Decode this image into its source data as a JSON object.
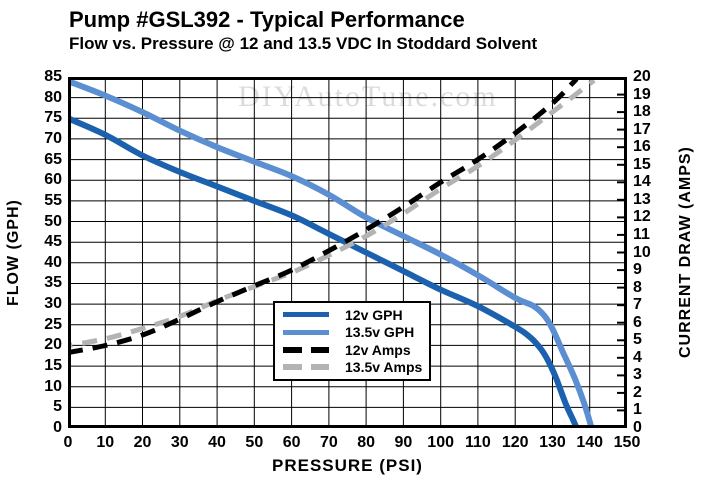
{
  "watermark": "DIYAutoTune.com",
  "chart_data": {
    "type": "line",
    "title": "Pump #GSL392 - Typical Performance",
    "subtitle": "Flow vs. Pressure @ 12 and 13.5 VDC In Stoddard Solvent",
    "xlabel": "PRESSURE (PSI)",
    "ylabel_left": "FLOW (GPH)",
    "ylabel_right": "CURRENT DRAW (AMPS)",
    "x_range": [
      0,
      150
    ],
    "y_left_range": [
      0,
      85
    ],
    "y_right_range": [
      0,
      20
    ],
    "x_ticks": [
      0,
      10,
      20,
      30,
      40,
      50,
      60,
      70,
      80,
      90,
      100,
      110,
      120,
      130,
      140,
      150
    ],
    "y_left_ticks": [
      0,
      5,
      10,
      15,
      20,
      25,
      30,
      35,
      40,
      45,
      50,
      55,
      60,
      65,
      70,
      75,
      80,
      85
    ],
    "y_right_ticks": [
      0,
      1,
      2,
      3,
      4,
      5,
      6,
      7,
      8,
      9,
      10,
      11,
      12,
      13,
      14,
      15,
      16,
      17,
      18,
      19,
      20
    ],
    "grid": true,
    "legend_position": "inside-lower-left",
    "series": [
      {
        "name": "12v GPH",
        "axis": "left",
        "style": "solid",
        "color": "#1b61ae",
        "points": [
          [
            0,
            75
          ],
          [
            10,
            71
          ],
          [
            20,
            66
          ],
          [
            30,
            62
          ],
          [
            40,
            58.5
          ],
          [
            50,
            55
          ],
          [
            60,
            51.5
          ],
          [
            70,
            47
          ],
          [
            80,
            42.5
          ],
          [
            90,
            38
          ],
          [
            100,
            33.5
          ],
          [
            110,
            29.5
          ],
          [
            120,
            24.5
          ],
          [
            124,
            22
          ],
          [
            127,
            19
          ],
          [
            129,
            16
          ],
          [
            131,
            12
          ],
          [
            133.5,
            6
          ],
          [
            135.5,
            2
          ],
          [
            136.5,
            0
          ]
        ]
      },
      {
        "name": "13.5v GPH",
        "axis": "left",
        "style": "solid",
        "color": "#5b8fd2",
        "points": [
          [
            0,
            84
          ],
          [
            10,
            80.5
          ],
          [
            20,
            76.5
          ],
          [
            30,
            72
          ],
          [
            40,
            68
          ],
          [
            50,
            64.5
          ],
          [
            60,
            61
          ],
          [
            70,
            56.5
          ],
          [
            80,
            51
          ],
          [
            90,
            46.5
          ],
          [
            100,
            42
          ],
          [
            110,
            37
          ],
          [
            120,
            31.5
          ],
          [
            125,
            29.5
          ],
          [
            128,
            27
          ],
          [
            130,
            24
          ],
          [
            133,
            18
          ],
          [
            136,
            12
          ],
          [
            138.5,
            6
          ],
          [
            140.5,
            0
          ]
        ]
      },
      {
        "name": "12v Amps",
        "axis": "right",
        "style": "dashed",
        "color": "#000000",
        "points": [
          [
            0,
            4.3
          ],
          [
            10,
            4.7
          ],
          [
            20,
            5.3
          ],
          [
            30,
            6.2
          ],
          [
            40,
            7.2
          ],
          [
            50,
            8.1
          ],
          [
            60,
            9
          ],
          [
            70,
            10.1
          ],
          [
            80,
            11.3
          ],
          [
            90,
            12.6
          ],
          [
            100,
            14
          ],
          [
            110,
            15.3
          ],
          [
            120,
            16.8
          ],
          [
            130,
            18.5
          ],
          [
            136.5,
            19.9
          ]
        ]
      },
      {
        "name": "13.5v Amps",
        "axis": "right",
        "style": "dashed",
        "color": "#b3b3b3",
        "points": [
          [
            0,
            4.8
          ],
          [
            10,
            5.2
          ],
          [
            20,
            5.8
          ],
          [
            30,
            6.5
          ],
          [
            40,
            7.4
          ],
          [
            50,
            8.2
          ],
          [
            60,
            9
          ],
          [
            70,
            10
          ],
          [
            80,
            11.1
          ],
          [
            90,
            12.4
          ],
          [
            100,
            13.8
          ],
          [
            110,
            15.1
          ],
          [
            120,
            16.6
          ],
          [
            130,
            18.2
          ],
          [
            135,
            19
          ],
          [
            140.5,
            19.9
          ]
        ]
      }
    ]
  }
}
